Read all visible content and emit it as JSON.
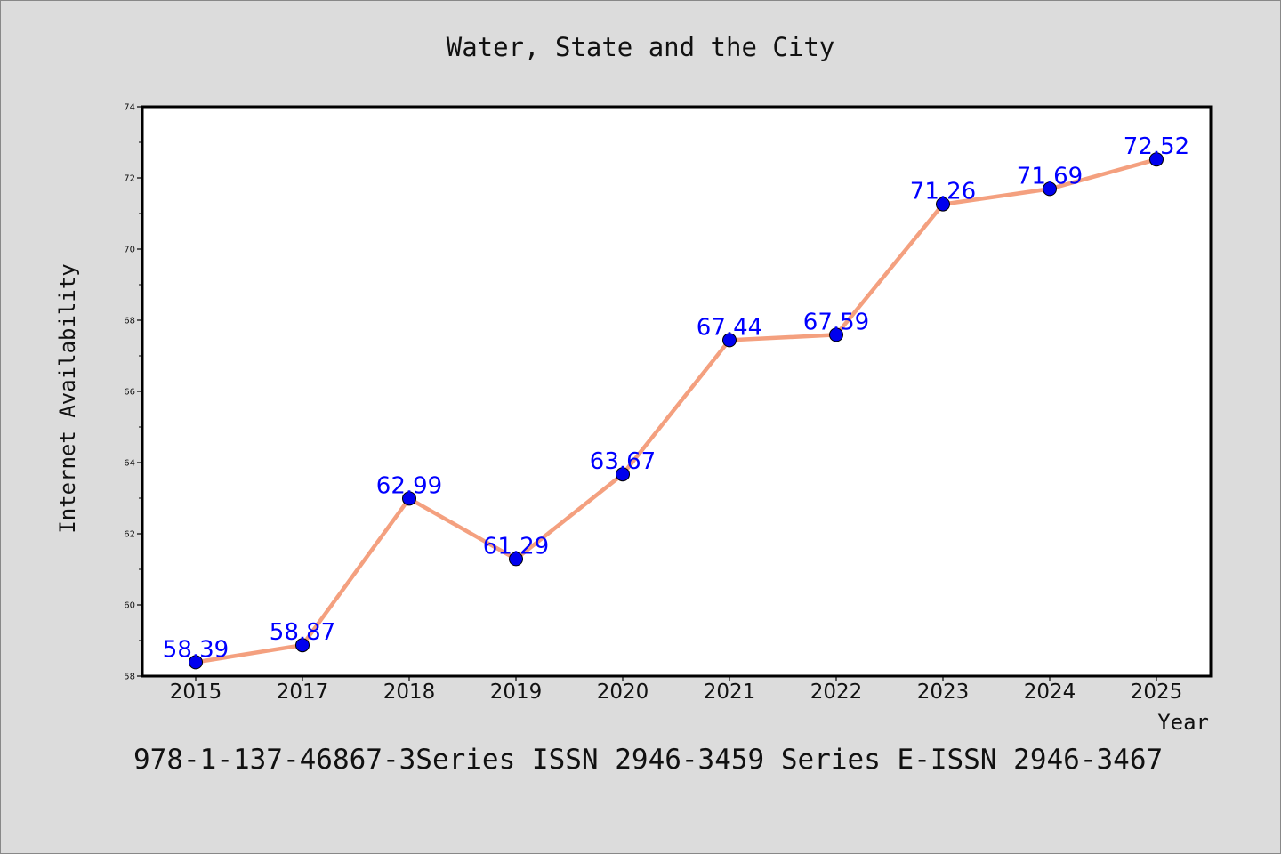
{
  "chart_data": {
    "type": "line",
    "title": "Water, State and the City",
    "xlabel": "Year",
    "ylabel": "Internet Availability",
    "footer": "978-1-137-46867-3Series ISSN 2946-3459 Series E-ISSN 2946-3467",
    "categories": [
      "2015",
      "2017",
      "2018",
      "2019",
      "2020",
      "2021",
      "2022",
      "2023",
      "2024",
      "2025"
    ],
    "series": [
      {
        "values": [
          58.39,
          58.87,
          62.99,
          61.29,
          63.67,
          67.44,
          67.59,
          71.26,
          71.69,
          72.52
        ],
        "labels": [
          "58.39",
          "58.87",
          "62.99",
          "61.29",
          "63.67",
          "67.44",
          "67.59",
          "71.26",
          "71.69",
          "72.52"
        ],
        "line_color": "#f4a07f",
        "marker_color": "#0000ee",
        "label_color": "#0000ff"
      }
    ],
    "ylim": [
      58,
      74
    ],
    "yticks": [
      "58",
      "60",
      "62",
      "64",
      "66",
      "68",
      "70",
      "72",
      "74"
    ],
    "grid": false,
    "legend": "none"
  }
}
